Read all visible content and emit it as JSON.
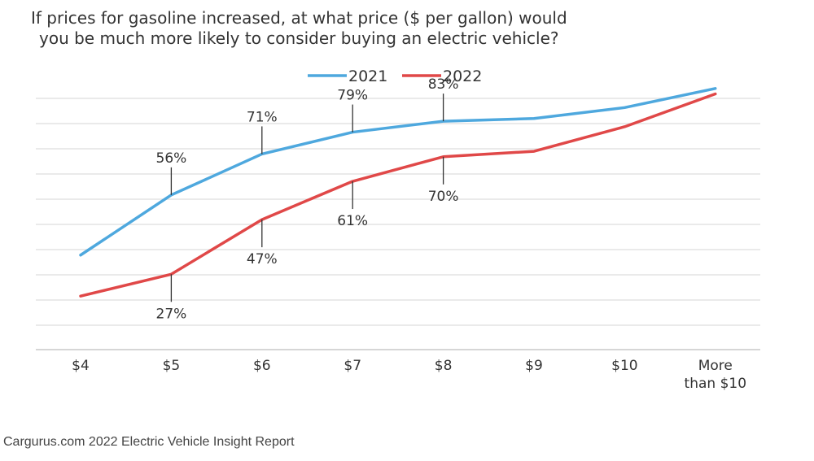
{
  "chart_data": {
    "type": "line",
    "title_line1": "If prices for gasoline increased, at what price ($ per gallon) would",
    "title_line2": "you be much more likely to consider buying an electric vehicle?",
    "categories": [
      "$4",
      "$5",
      "$6",
      "$7",
      "$8",
      "$9",
      "$10",
      "More than $10"
    ],
    "series": [
      {
        "name": "2021",
        "color": "#4ea8de",
        "values": [
          34,
          56,
          71,
          79,
          83,
          84,
          88,
          95
        ],
        "labels": [
          null,
          "56%",
          "71%",
          "79%",
          "83%",
          null,
          null,
          null
        ]
      },
      {
        "name": "2022",
        "color": "#e04848",
        "values": [
          19,
          27,
          47,
          61,
          70,
          72,
          81,
          93
        ],
        "labels": [
          null,
          "27%",
          "47%",
          "61%",
          "70%",
          null,
          null,
          null
        ]
      }
    ],
    "ylim": [
      0,
      100
    ],
    "grid": true,
    "legend_position": "top-center"
  },
  "source": "Cargurus.com 2022 Electric Vehicle Insight Report"
}
